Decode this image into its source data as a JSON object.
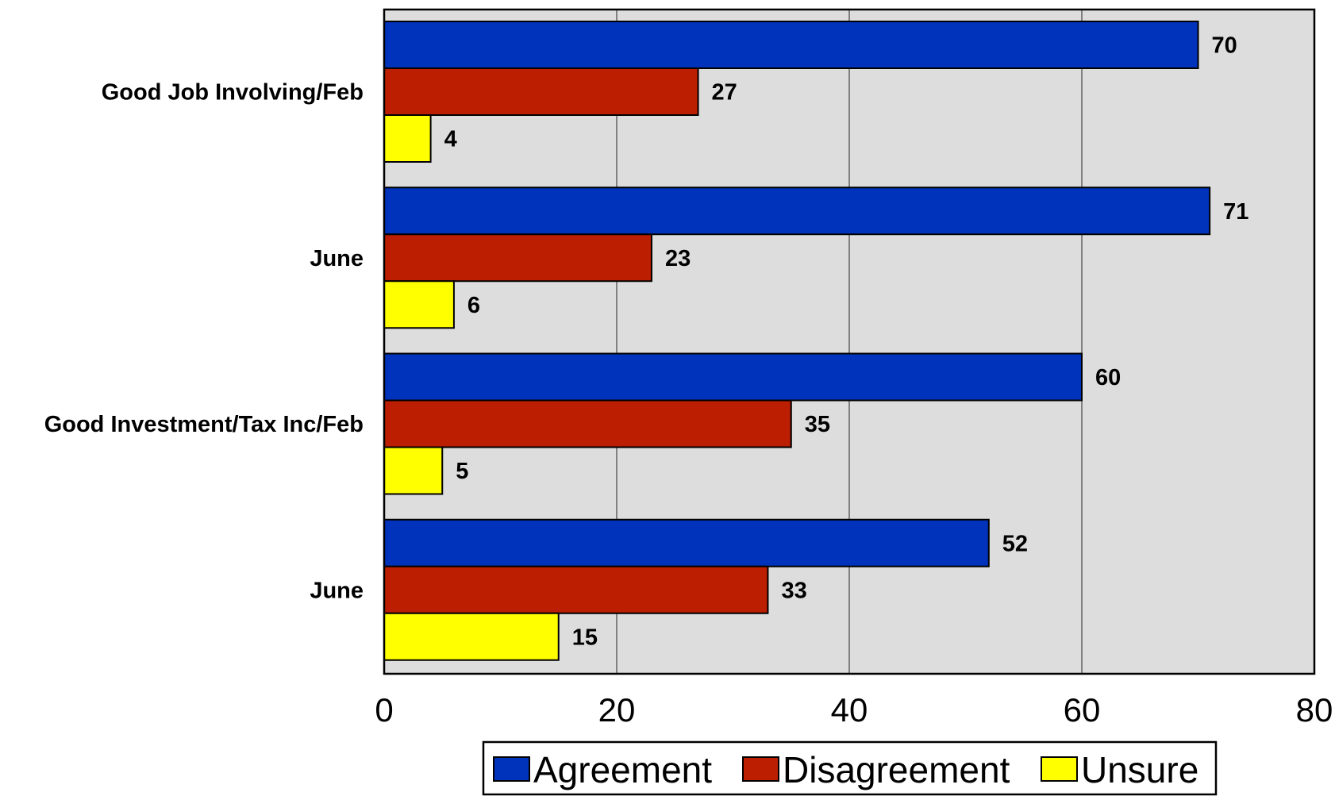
{
  "chart_data": {
    "type": "bar",
    "orientation": "horizontal",
    "categories": [
      "Good Job Involving/Feb",
      "June",
      "Good Investment/Tax Inc/Feb",
      "June"
    ],
    "series": [
      {
        "name": "Agreement",
        "color": "#0033bb",
        "values": [
          70,
          71,
          60,
          52
        ]
      },
      {
        "name": "Disagreement",
        "color": "#bb1e00",
        "values": [
          27,
          23,
          35,
          33
        ]
      },
      {
        "name": "Unsure",
        "color": "#ffff00",
        "values": [
          4,
          6,
          5,
          15
        ]
      }
    ],
    "xlim": [
      0,
      80
    ],
    "xticks": [
      0,
      20,
      40,
      60,
      80
    ],
    "grid": true,
    "plot_background": "#dddddd",
    "legend_position": "bottom"
  }
}
